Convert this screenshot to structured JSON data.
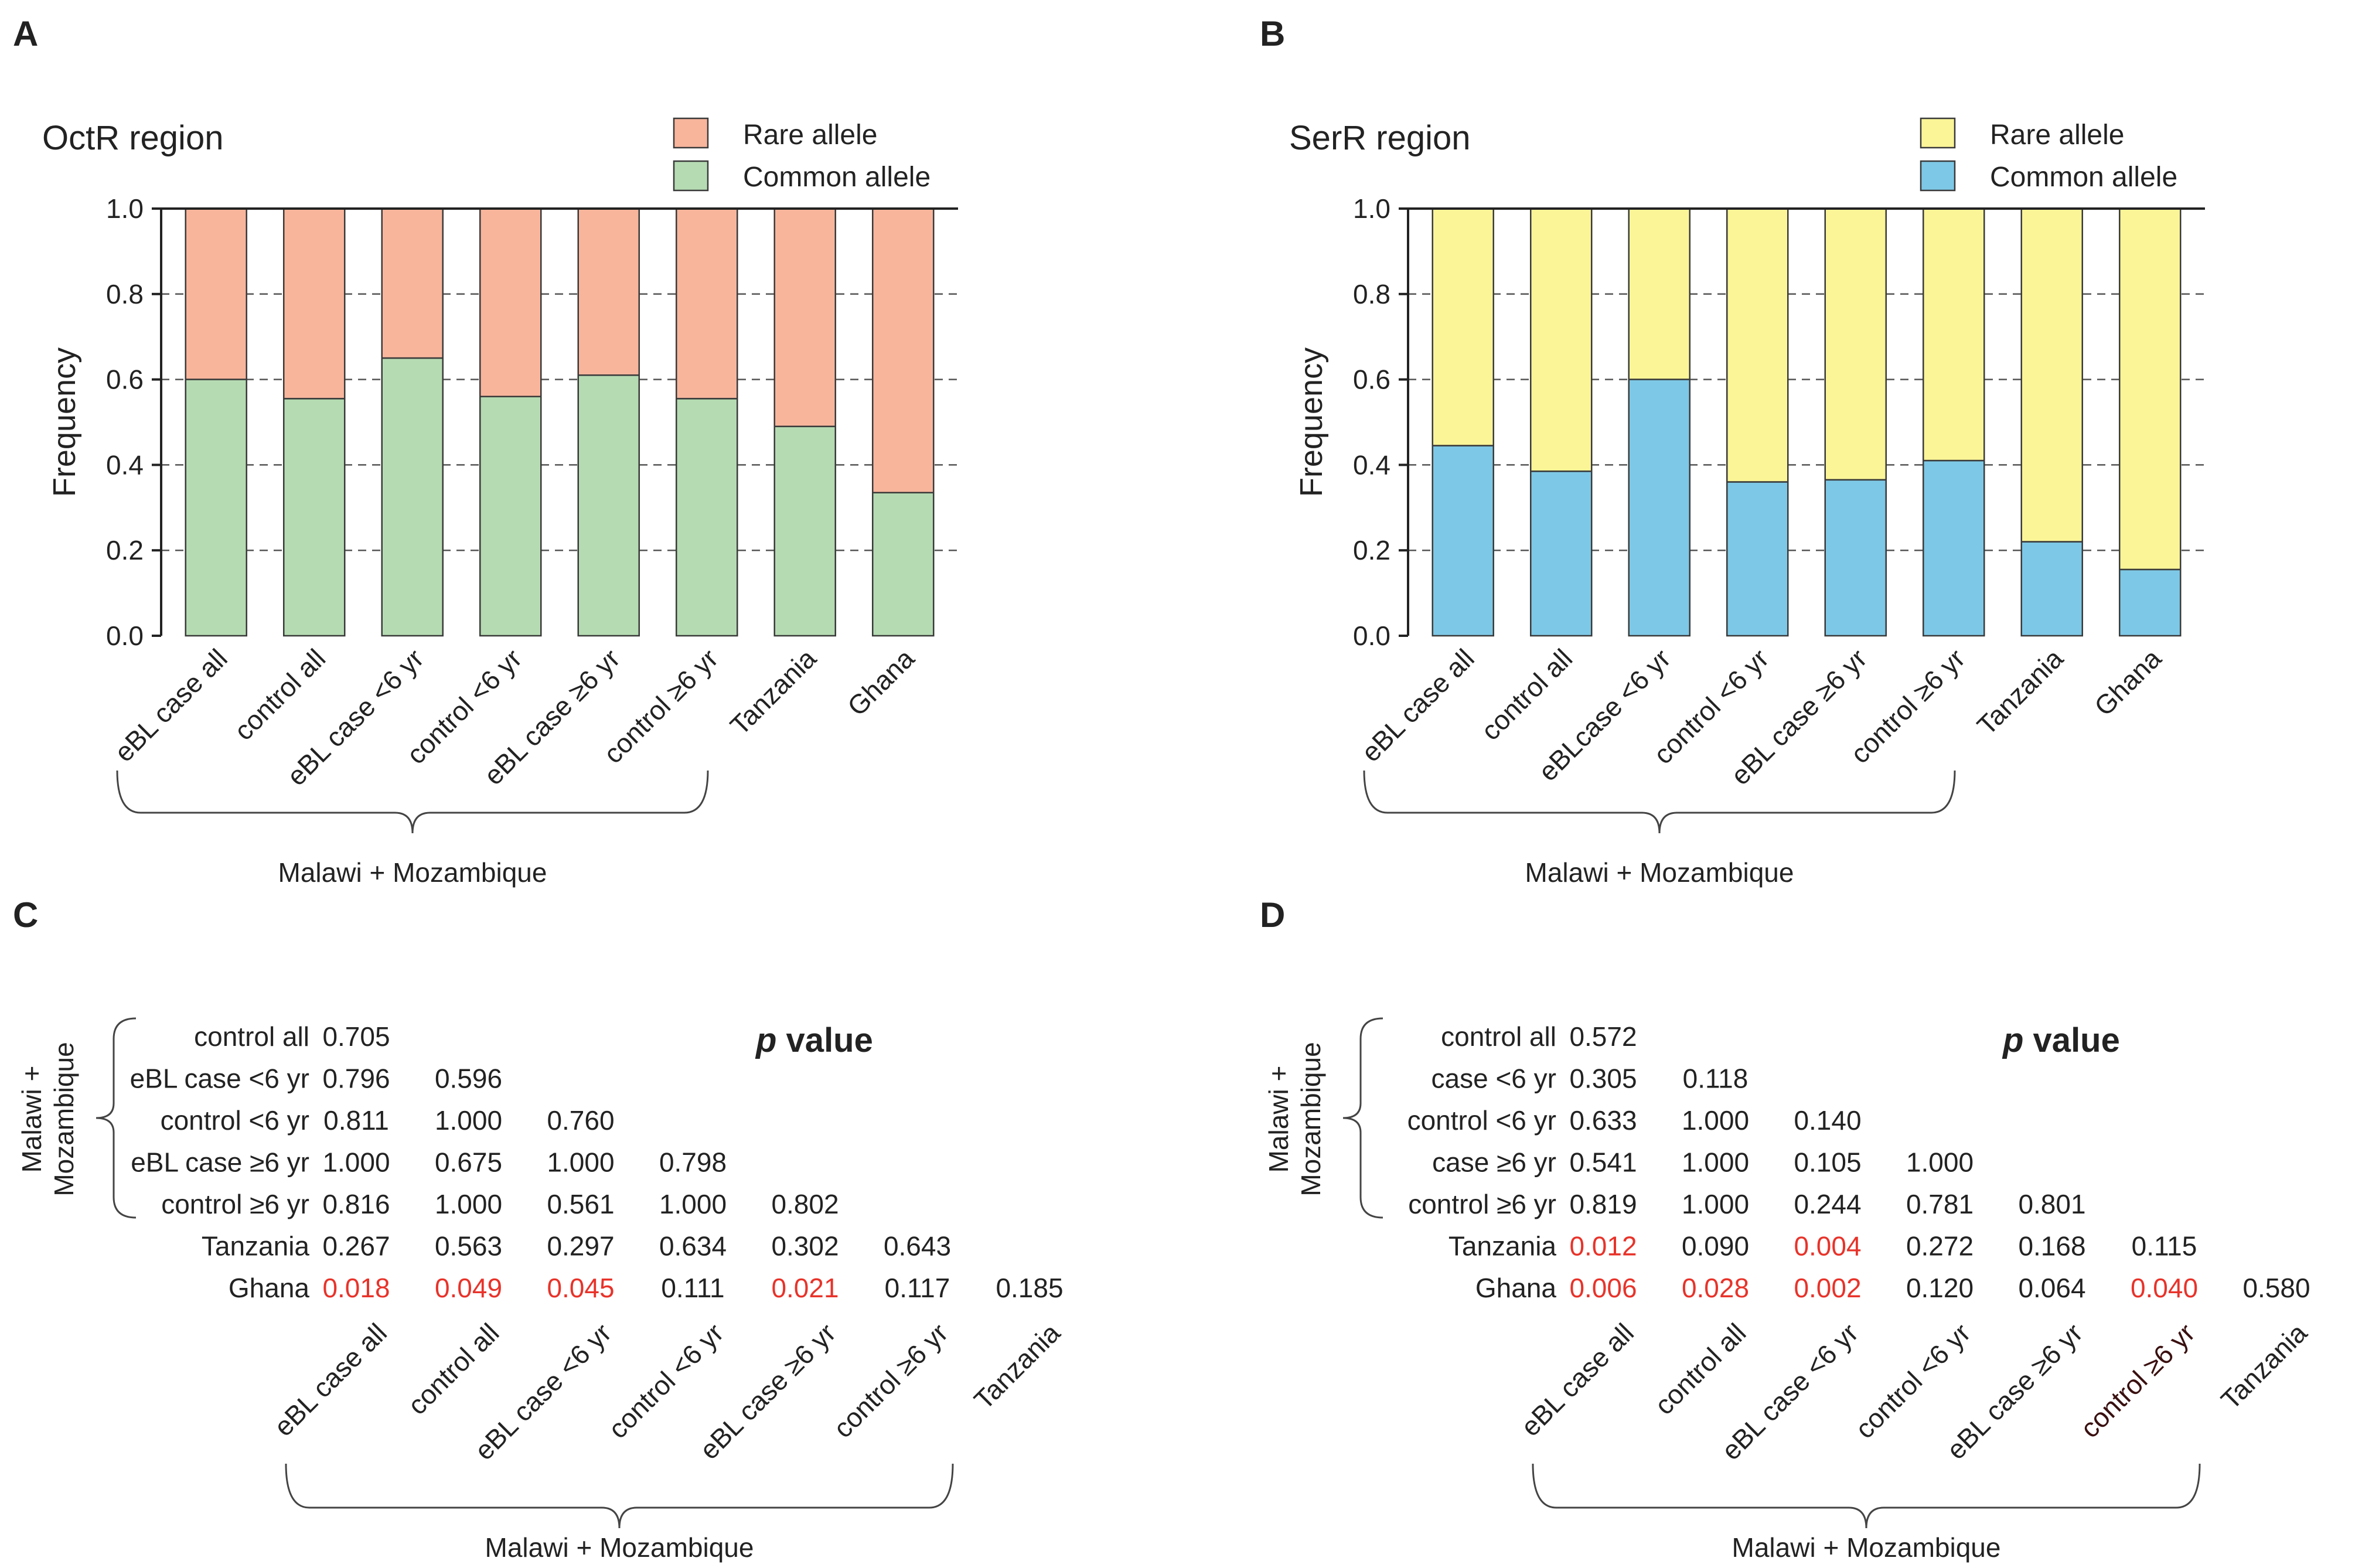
{
  "panels": {
    "a": {
      "letter": "A"
    },
    "b": {
      "letter": "B"
    },
    "c": {
      "letter": "C"
    },
    "d": {
      "letter": "D"
    }
  },
  "colors": {
    "octr_rare": "#f8b59c",
    "octr_common": "#b5dbb2",
    "serr_rare": "#fbf597",
    "serr_common": "#7dc8e6",
    "significant": "#e8332a",
    "dark_label": "#3a1010"
  },
  "y_axis": {
    "label": "Frequency",
    "ticks": [
      "0.0",
      "0.2",
      "0.4",
      "0.6",
      "0.8",
      "1.0"
    ]
  },
  "group_label": "Malawi + Mozambique",
  "chart_data": [
    {
      "type": "bar",
      "stacked": true,
      "title": "OctR region",
      "categories": [
        "eBL case all",
        "control all",
        "eBL case <6 yr",
        "control <6 yr",
        "eBL case ≥6 yr",
        "control ≥6 yr",
        "Tanzania",
        "Ghana"
      ],
      "series": [
        {
          "name": "Common allele",
          "values": [
            0.6,
            0.555,
            0.65,
            0.56,
            0.61,
            0.555,
            0.49,
            0.335
          ]
        },
        {
          "name": "Rare allele",
          "values": [
            0.4,
            0.445,
            0.35,
            0.44,
            0.39,
            0.445,
            0.51,
            0.665
          ]
        }
      ],
      "legend": [
        "Rare allele",
        "Common allele"
      ],
      "xlabel": "",
      "ylabel": "Frequency",
      "ylim": [
        0,
        1
      ],
      "grid": true,
      "legend_position": "top-right"
    },
    {
      "type": "bar",
      "stacked": true,
      "title": "SerR region",
      "categories": [
        "eBL case all",
        "control all",
        "eBLcase <6 yr",
        "control <6 yr",
        "eBL case ≥6 yr",
        "control ≥6 yr",
        "Tanzania",
        "Ghana"
      ],
      "series": [
        {
          "name": "Common allele",
          "values": [
            0.445,
            0.385,
            0.6,
            0.36,
            0.365,
            0.41,
            0.22,
            0.155
          ]
        },
        {
          "name": "Rare allele",
          "values": [
            0.555,
            0.615,
            0.4,
            0.64,
            0.635,
            0.59,
            0.78,
            0.845
          ]
        }
      ],
      "legend": [
        "Rare allele",
        "Common allele"
      ],
      "xlabel": "",
      "ylabel": "Frequency",
      "ylim": [
        0,
        1
      ],
      "grid": true,
      "legend_position": "top-right"
    },
    {
      "type": "table",
      "title": "p value",
      "title_italic": "p",
      "title_rest": " value",
      "side_label_1": "Malawi +",
      "side_label_2": "Mozambique",
      "row_labels": [
        "control all",
        "eBL case <6 yr",
        "control <6 yr",
        "eBL case ≥6 yr",
        "control ≥6 yr",
        "Tanzania",
        "Ghana"
      ],
      "col_labels": [
        "eBL case all",
        "control all",
        "eBL case <6 yr",
        "control <6 yr",
        "eBL case ≥6 yr",
        "control ≥6 yr",
        "Tanzania"
      ],
      "values": [
        [
          "0.705"
        ],
        [
          "0.796",
          "0.596"
        ],
        [
          "0.811",
          "1.000",
          "0.760"
        ],
        [
          "1.000",
          "0.675",
          "1.000",
          "0.798"
        ],
        [
          "0.816",
          "1.000",
          "0.561",
          "1.000",
          "0.802"
        ],
        [
          "0.267",
          "0.563",
          "0.297",
          "0.634",
          "0.302",
          "0.643"
        ],
        [
          "0.018",
          "0.049",
          "0.045",
          "0.111",
          "0.021",
          "0.117",
          "0.185"
        ]
      ],
      "significant": [
        [
          false
        ],
        [
          false,
          false
        ],
        [
          false,
          false,
          false
        ],
        [
          false,
          false,
          false,
          false
        ],
        [
          false,
          false,
          false,
          false,
          false
        ],
        [
          false,
          false,
          false,
          false,
          false,
          false
        ],
        [
          true,
          true,
          true,
          false,
          true,
          false,
          false
        ]
      ],
      "group_label": "Malawi + Mozambique"
    },
    {
      "type": "table",
      "title": "p value",
      "title_italic": "p",
      "title_rest": " value",
      "side_label_1": "Malawi +",
      "side_label_2": "Mozambique",
      "row_labels": [
        "control all",
        "case <6 yr",
        "control <6 yr",
        "case ≥6 yr",
        "control ≥6 yr",
        "Tanzania",
        "Ghana"
      ],
      "col_labels": [
        "eBL case all",
        "control all",
        "eBL case <6 yr",
        "control <6 yr",
        "eBL case ≥6 yr",
        "control ≥6 yr",
        "Tanzania"
      ],
      "values": [
        [
          "0.572"
        ],
        [
          "0.305",
          "0.118"
        ],
        [
          "0.633",
          "1.000",
          "0.140"
        ],
        [
          "0.541",
          "1.000",
          "0.105",
          "1.000"
        ],
        [
          "0.819",
          "1.000",
          "0.244",
          "0.781",
          "0.801"
        ],
        [
          "0.012",
          "0.090",
          "0.004",
          "0.272",
          "0.168",
          "0.115"
        ],
        [
          "0.006",
          "0.028",
          "0.002",
          "0.120",
          "0.064",
          "0.040",
          "0.580"
        ]
      ],
      "significant": [
        [
          false
        ],
        [
          false,
          false
        ],
        [
          false,
          false,
          false
        ],
        [
          false,
          false,
          false,
          false
        ],
        [
          false,
          false,
          false,
          false,
          false
        ],
        [
          true,
          false,
          true,
          false,
          false,
          false
        ],
        [
          true,
          true,
          true,
          false,
          false,
          true,
          false
        ]
      ],
      "highlight_col": 5,
      "group_label": "Malawi + Mozambique"
    }
  ]
}
